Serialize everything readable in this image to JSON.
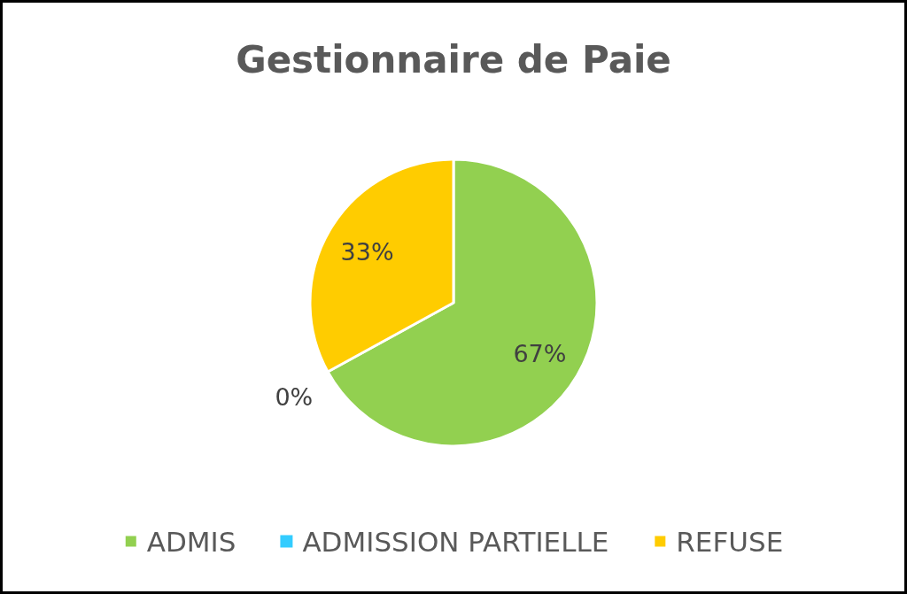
{
  "chart_data": {
    "type": "pie",
    "title": "Gestionnaire de Paie",
    "categories": [
      "ADMIS",
      "ADMISSION PARTIELLE",
      "REFUSE"
    ],
    "values": [
      67,
      0,
      33
    ],
    "colors": [
      "#92d050",
      "#33ccff",
      "#ffcc00"
    ],
    "value_labels": [
      "67%",
      "0%",
      "33%"
    ],
    "legend": "bottom"
  }
}
